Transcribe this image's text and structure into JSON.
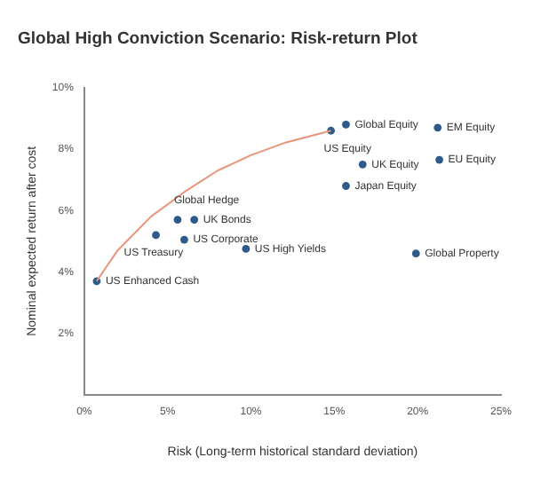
{
  "chart_data": {
    "type": "scatter",
    "title": "Global High Conviction Scenario: Risk-return Plot",
    "xlabel": "Risk (Long-term historical standard deviation)",
    "ylabel": "Nominal expected return after cost",
    "series": [
      {
        "type": "line",
        "color": "#e8957a",
        "marker": "none",
        "x": [
          0.75,
          2,
          4,
          6,
          8,
          10,
          12,
          14.8
        ],
        "values": [
          3.7,
          4.7,
          5.8,
          6.6,
          7.3,
          7.8,
          8.2,
          8.6
        ]
      },
      {
        "color": "#2e5a8a",
        "marker": "circle",
        "x": [
          0.75,
          4.3,
          5.6,
          6.6,
          6.0,
          9.7,
          14.8,
          15.7,
          21.2,
          16.7,
          21.3,
          15.7,
          19.9
        ],
        "values": [
          3.7,
          5.2,
          5.7,
          5.7,
          5.05,
          4.75,
          8.6,
          8.8,
          8.7,
          7.5,
          7.65,
          6.8,
          4.6
        ]
      }
    ],
    "annotations": [
      {
        "text": "US Enhanced Cash",
        "x": 0.75,
        "y": 3.7
      },
      {
        "text": "US Treasury",
        "x": 4.3,
        "y": 5.2
      },
      {
        "text": "Global Hedge",
        "x": 5.6,
        "y": 5.7
      },
      {
        "text": "UK Bonds",
        "x": 6.6,
        "y": 5.7
      },
      {
        "text": "US Corporate",
        "x": 6.0,
        "y": 5.05
      },
      {
        "text": "US High Yields",
        "x": 9.7,
        "y": 4.75
      },
      {
        "text": "US Equity",
        "x": 14.8,
        "y": 8.6
      },
      {
        "text": "Global Equity",
        "x": 15.7,
        "y": 8.8
      },
      {
        "text": "EM Equity",
        "x": 21.2,
        "y": 8.7
      },
      {
        "text": "UK Equity",
        "x": 16.7,
        "y": 7.5
      },
      {
        "text": "EU Equity",
        "x": 21.3,
        "y": 7.65
      },
      {
        "text": "Japan Equity",
        "x": 15.7,
        "y": 6.8
      },
      {
        "text": "Global Property",
        "x": 19.9,
        "y": 4.6
      }
    ],
    "xlim": [
      0,
      25
    ],
    "xticks": [
      {
        "value": 0,
        "label": "0%"
      },
      {
        "value": 5,
        "label": "5%"
      },
      {
        "value": 10,
        "label": "10%"
      },
      {
        "value": 15,
        "label": "15%"
      },
      {
        "value": 20,
        "label": "20%"
      },
      {
        "value": 25,
        "label": "25%"
      }
    ],
    "ylim": [
      0,
      10
    ],
    "yticks": [
      {
        "value": 2,
        "label": "2%"
      },
      {
        "value": 4,
        "label": "4%"
      },
      {
        "value": 6,
        "label": "6%"
      },
      {
        "value": 8,
        "label": "8%"
      },
      {
        "value": 10,
        "label": "10%"
      }
    ],
    "grid": false,
    "legend": false
  }
}
